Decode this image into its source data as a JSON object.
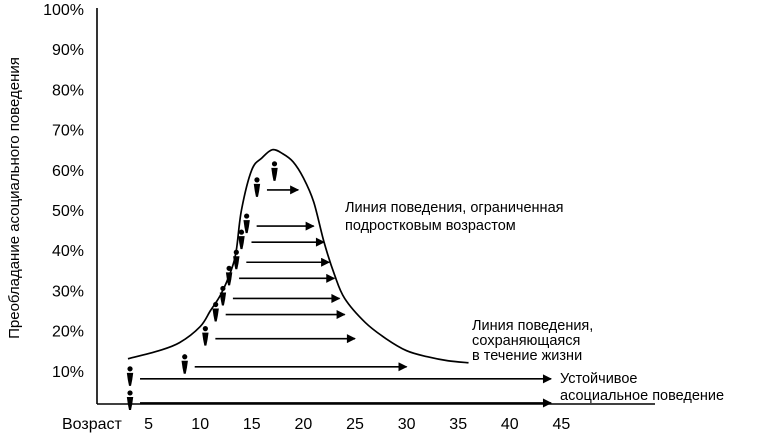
{
  "chart_data": {
    "type": "line",
    "title": "",
    "ylabel": "Преобладание асоциального поведения",
    "xlabel": "Возраст",
    "x_ticks": [
      "5",
      "10",
      "15",
      "20",
      "25",
      "30",
      "35",
      "40",
      "45"
    ],
    "y_ticks": [
      "10%",
      "20%",
      "30%",
      "40%",
      "50%",
      "60%",
      "70%",
      "80%",
      "90%",
      "100%"
    ],
    "xlim": [
      0,
      50
    ],
    "ylim": [
      0,
      100
    ],
    "grid": false,
    "curve": {
      "x": [
        3,
        6,
        8,
        10,
        11,
        12,
        13,
        13.5,
        14,
        15,
        16,
        17,
        18,
        19,
        20,
        21,
        22,
        23,
        24,
        26,
        28,
        30,
        32,
        34,
        36
      ],
      "y": [
        13,
        15,
        17,
        21,
        25,
        29,
        35,
        40,
        50,
        60,
        63,
        65,
        64,
        62,
        58,
        52,
        42,
        34,
        28,
        22,
        18,
        15,
        13.5,
        12.5,
        12
      ]
    },
    "arrows": [
      {
        "start_age": 3.2,
        "end_age": 44,
        "level": 2
      },
      {
        "start_age": 3.2,
        "end_age": 44,
        "level": 8
      },
      {
        "start_age": 8.5,
        "end_age": 30,
        "level": 11
      },
      {
        "start_age": 10.5,
        "end_age": 25,
        "level": 18
      },
      {
        "start_age": 11.5,
        "end_age": 24,
        "level": 24
      },
      {
        "start_age": 12.2,
        "end_age": 23.5,
        "level": 28
      },
      {
        "start_age": 12.8,
        "end_age": 23,
        "level": 33
      },
      {
        "start_age": 13.5,
        "end_age": 22.5,
        "level": 37
      },
      {
        "start_age": 14,
        "end_age": 22,
        "level": 42
      },
      {
        "start_age": 14.5,
        "end_age": 21,
        "level": 46
      },
      {
        "start_age": 15.5,
        "end_age": 19.5,
        "level": 55
      }
    ],
    "annotations": [
      {
        "lines": [
          "Линия поведения, ограниченная",
          "подростковым возрастом"
        ]
      },
      {
        "lines": [
          "Линия поведения,",
          "сохраняющаяся",
          "в течение жизни"
        ]
      },
      {
        "lines": [
          "Устойчивое",
          "асоциальное поведение"
        ]
      }
    ]
  }
}
